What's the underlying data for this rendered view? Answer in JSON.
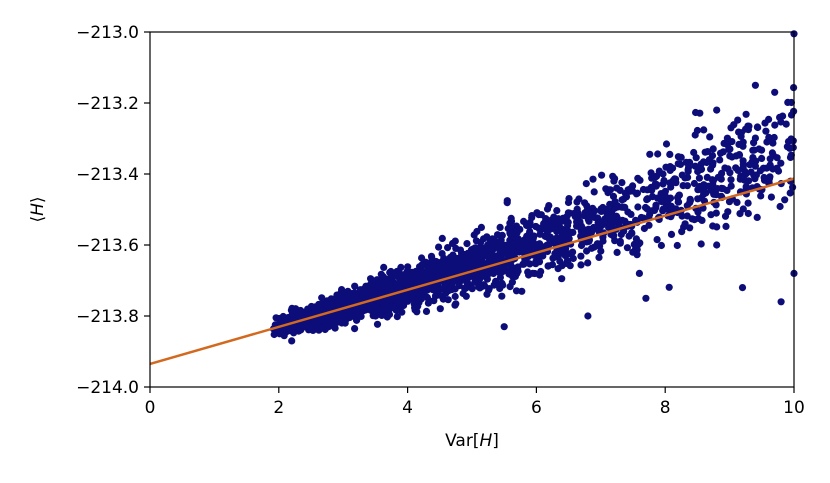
{
  "chart_data": {
    "type": "scatter",
    "title": "",
    "xlabel_text": "Var[",
    "xlabel_var": "H",
    "xlabel_close": "]",
    "ylabel_open": "⟨",
    "ylabel_var": "H",
    "ylabel_close": "⟩",
    "xlim": [
      0,
      10
    ],
    "ylim": [
      -214.0,
      -213.0
    ],
    "xticks": [
      0,
      2,
      4,
      6,
      8,
      10
    ],
    "xtick_labels": [
      "0",
      "2",
      "4",
      "6",
      "8",
      "10"
    ],
    "yticks": [
      -214.0,
      -213.8,
      -213.6,
      -213.4,
      -213.2,
      -213.0
    ],
    "ytick_labels": [
      "−214.0",
      "−213.8",
      "−213.6",
      "−213.4",
      "−213.2",
      "−213.0"
    ],
    "grid": false,
    "legend": "none",
    "colors": {
      "points": "#0d0d7a",
      "fit_line": "#d2691e"
    },
    "fit_line": {
      "intercept": -213.935,
      "slope": 0.0522
    },
    "scatter_model": {
      "count": 2600,
      "x_range": [
        1.9,
        10.0
      ],
      "trend_intercept": -213.935,
      "trend_slope": 0.0522,
      "extra_curvature": 0.0014,
      "spread_base": 0.012,
      "spread_growth": 0.0085
    },
    "highlighted_points": [
      {
        "x": 10.0,
        "y": -213.005
      },
      {
        "x": 9.4,
        "y": -213.15
      },
      {
        "x": 9.7,
        "y": -213.17
      },
      {
        "x": 8.8,
        "y": -213.22
      },
      {
        "x": 6.8,
        "y": -213.8
      },
      {
        "x": 7.7,
        "y": -213.75
      },
      {
        "x": 9.8,
        "y": -213.76
      },
      {
        "x": 9.2,
        "y": -213.72
      },
      {
        "x": 8.8,
        "y": -213.6
      },
      {
        "x": 5.5,
        "y": -213.83
      },
      {
        "x": 2.2,
        "y": -213.87
      },
      {
        "x": 7.6,
        "y": -213.68
      },
      {
        "x": 10.0,
        "y": -213.68
      }
    ]
  }
}
